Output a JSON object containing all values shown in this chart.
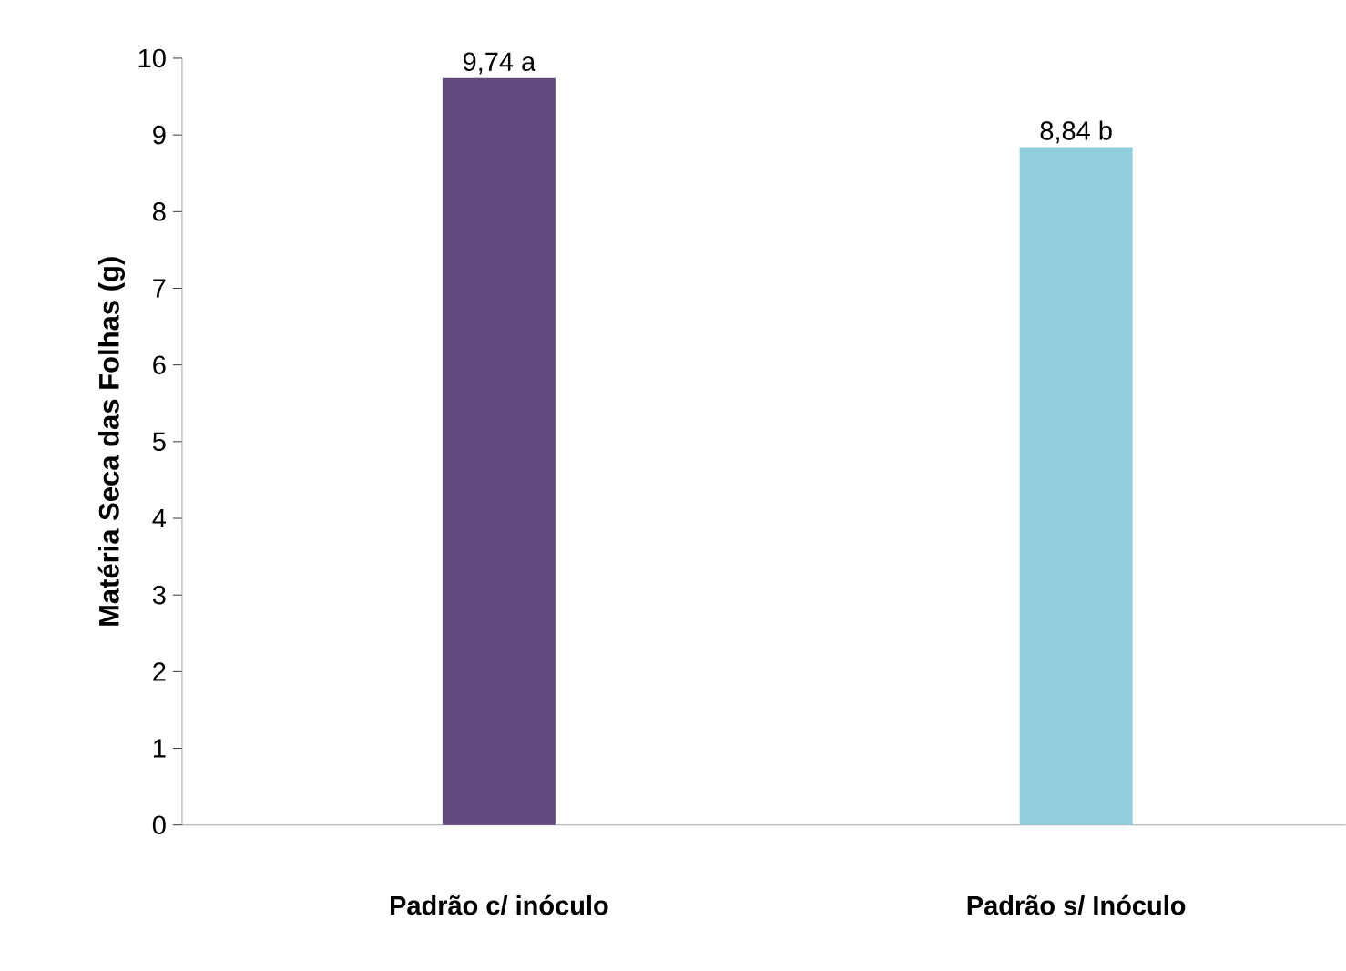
{
  "chart_data": {
    "type": "bar",
    "ylabel": "Matéria Seca das Folhas (g)",
    "categories": [
      "Padrão c/ inóculo",
      "Padrão s/ Inóculo"
    ],
    "values": [
      9.74,
      8.84
    ],
    "colors": [
      "#5f4a7b",
      "#92cddd"
    ],
    "value_labels": [
      "9,74 a",
      "8,84 b"
    ],
    "ylim": [
      0,
      10
    ],
    "yticks": [
      0,
      1,
      2,
      3,
      4,
      5,
      6,
      7,
      8,
      9,
      10
    ]
  }
}
